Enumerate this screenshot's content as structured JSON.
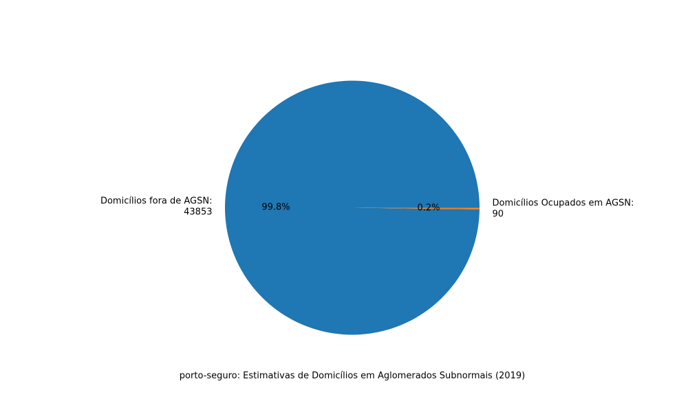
{
  "chart_data": {
    "type": "pie",
    "title": "porto-seguro: Estimativas de Domicílios em Aglomerados Subnormais (2019)",
    "slices": [
      {
        "label_lines": [
          "Domicílios fora de AGSN:",
          "43853"
        ],
        "value": 43853,
        "pct_label": "99.8%",
        "color": "#1f77b4"
      },
      {
        "label_lines": [
          "Domicílios Ocupados em AGSN:",
          "90"
        ],
        "value": 90,
        "pct_label": "0.2%",
        "color": "#ff7f0e"
      }
    ]
  }
}
